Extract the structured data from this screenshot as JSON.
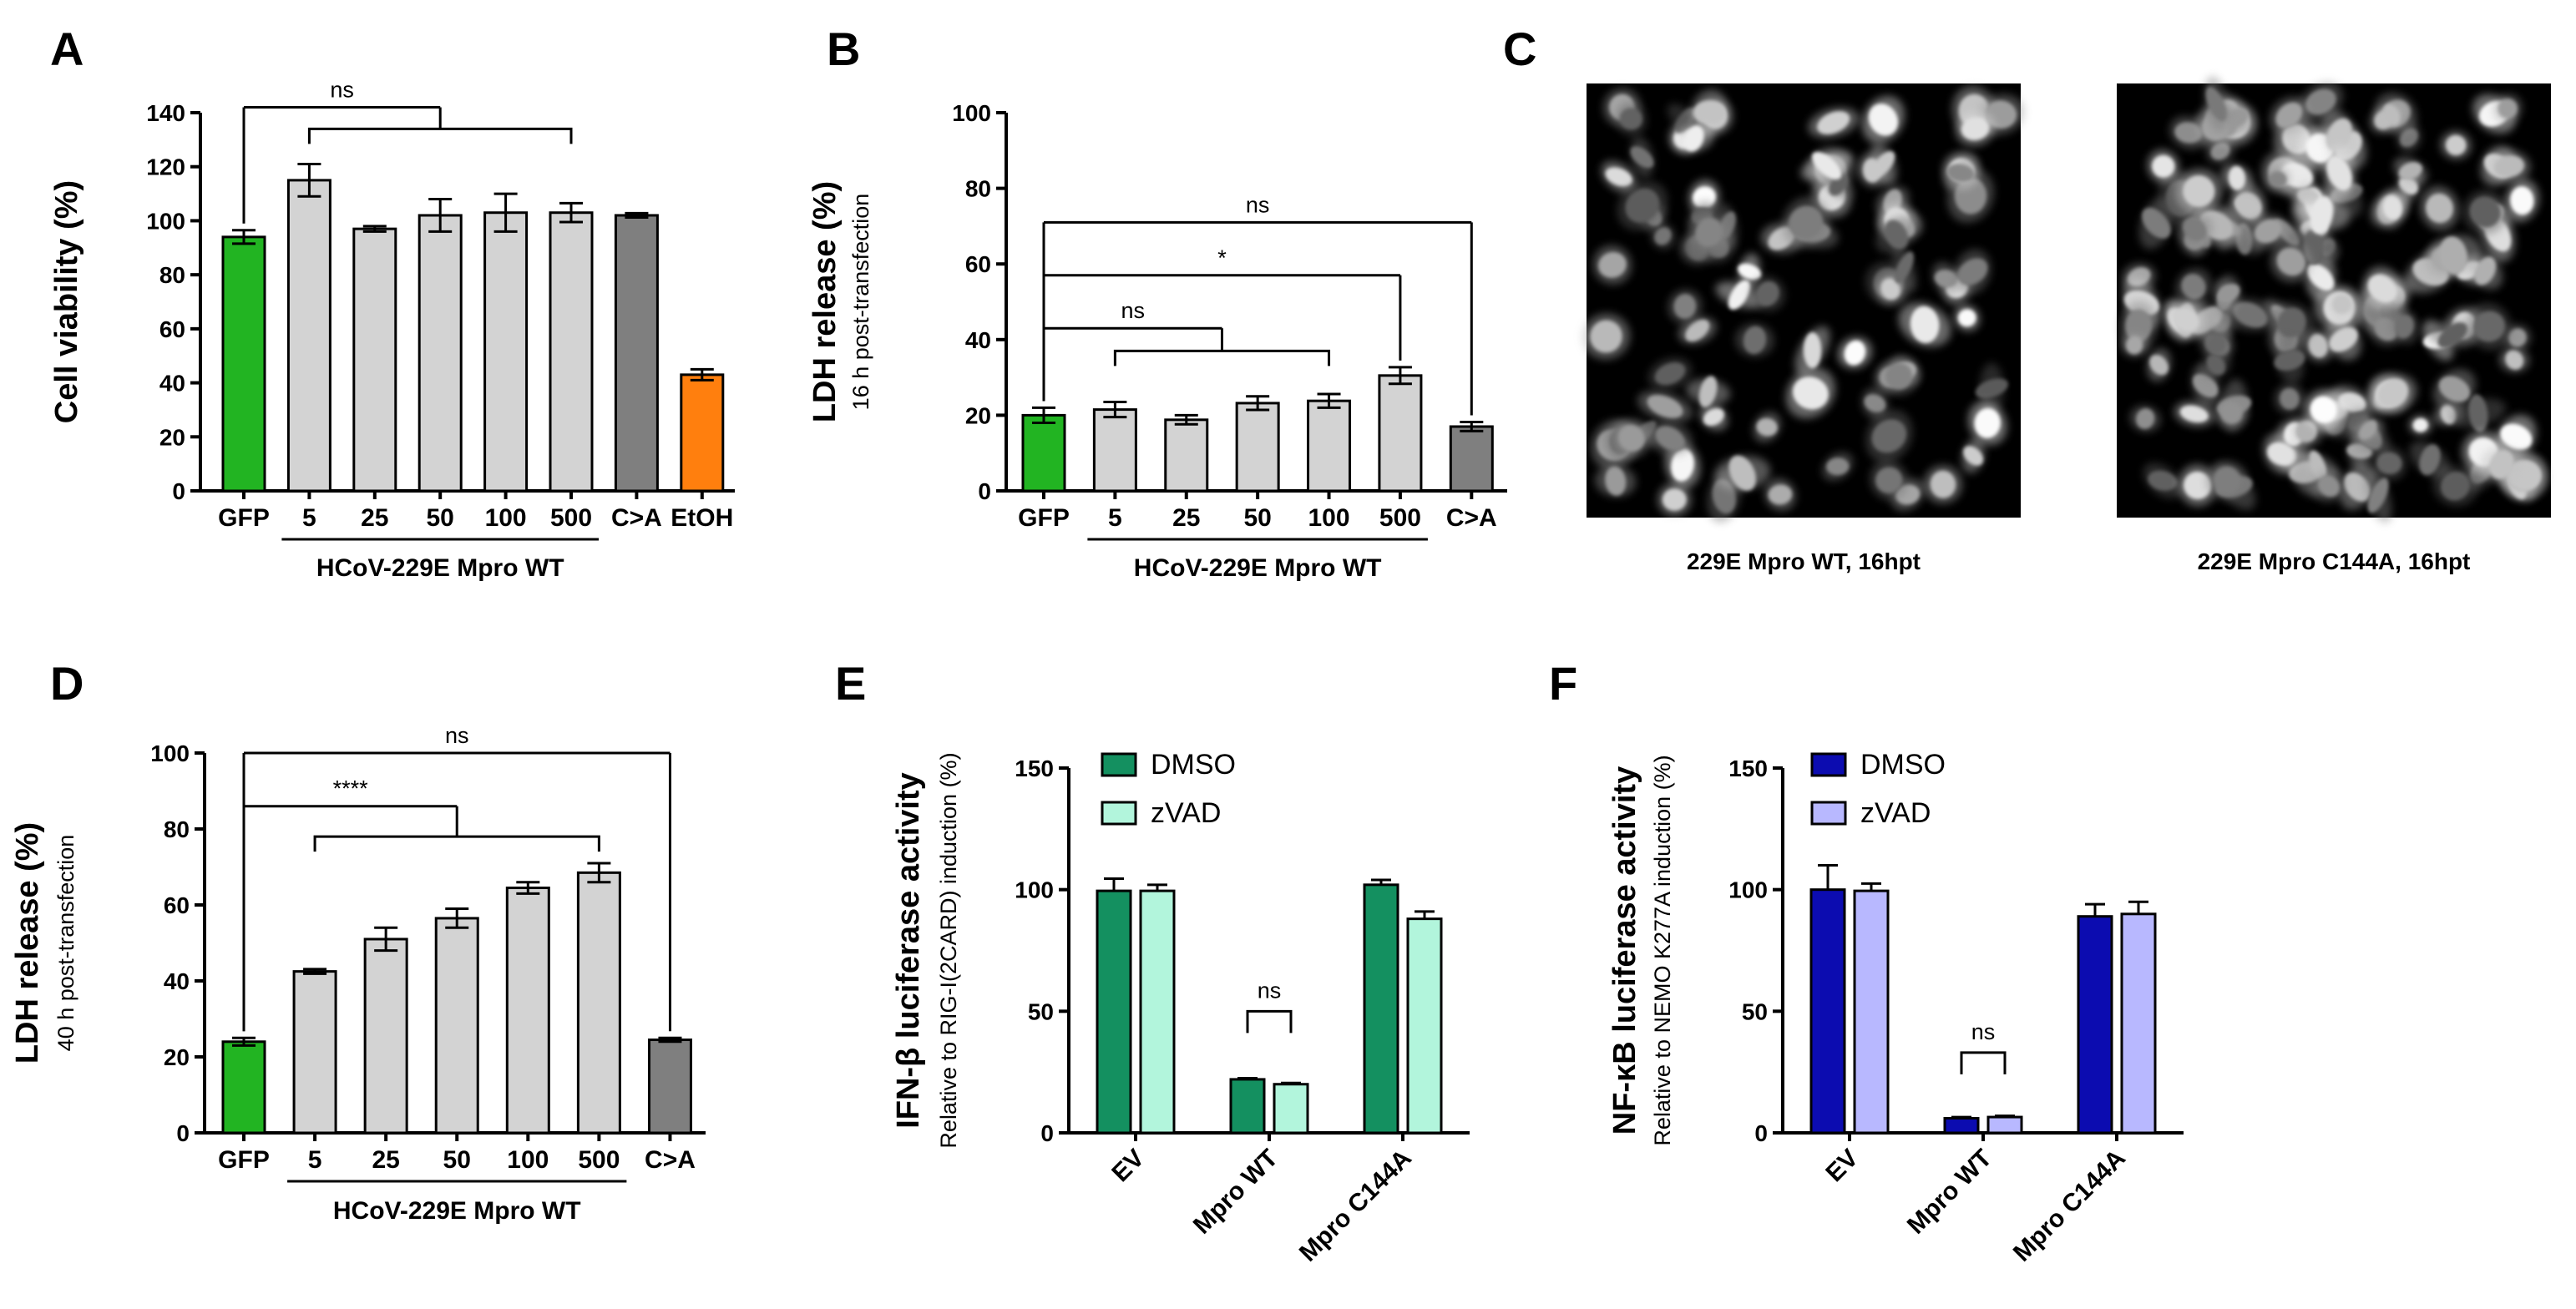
{
  "colors": {
    "gfp": "#22b422",
    "light_grey": "#d3d3d3",
    "dark_grey": "#7f7f7f",
    "etoh": "#ff7f0e",
    "dmso_green": "#149060",
    "zvad_green": "#b2f5dc",
    "dmso_blue": "#0c0cb0",
    "zvad_blue": "#b8b8ff",
    "microscopy_bg": "#000000"
  },
  "chart_data": [
    {
      "id": "A",
      "panel_label": "A",
      "type": "bar",
      "ylabel": "Cell viability (%)",
      "ylabel_sub": "",
      "ylim": [
        0,
        140
      ],
      "yticks": [
        "0",
        "20",
        "40",
        "60",
        "80",
        "100",
        "120",
        "140"
      ],
      "categories": [
        "GFP",
        "5",
        "25",
        "50",
        "100",
        "500",
        "C>A",
        "EtOH"
      ],
      "values": [
        94,
        115,
        97,
        102,
        103,
        103,
        102,
        43
      ],
      "errors": [
        2.5,
        6,
        1,
        6,
        7,
        3.5,
        0.8,
        2
      ],
      "bar_colors": [
        "gfp",
        "light_grey",
        "light_grey",
        "light_grey",
        "light_grey",
        "light_grey",
        "dark_grey",
        "etoh"
      ],
      "group_label": "HCoV-229E  Mpro WT",
      "group_span": [
        1,
        5
      ],
      "significance": [
        {
          "label": "ns",
          "left": [
            0
          ],
          "right": [
            1,
            5
          ],
          "y": 142,
          "y2": 134
        }
      ]
    },
    {
      "id": "B",
      "panel_label": "B",
      "type": "bar",
      "ylabel": "LDH release (%)",
      "ylabel_sub": "16 h post-transfection",
      "ylim": [
        0,
        100
      ],
      "yticks": [
        "0",
        "20",
        "40",
        "60",
        "80",
        "100"
      ],
      "categories": [
        "GFP",
        "5",
        "25",
        "50",
        "100",
        "500",
        "C>A"
      ],
      "values": [
        20,
        21.5,
        18.8,
        23.2,
        23.8,
        30.5,
        17
      ],
      "errors": [
        2,
        2,
        1.2,
        1.8,
        1.8,
        2.2,
        1.2
      ],
      "bar_colors": [
        "gfp",
        "light_grey",
        "light_grey",
        "light_grey",
        "light_grey",
        "light_grey",
        "dark_grey"
      ],
      "group_label": "HCoV-229E  Mpro WT",
      "group_span": [
        1,
        5
      ],
      "significance": [
        {
          "label": "ns",
          "left": [
            0
          ],
          "right": [
            1,
            4
          ],
          "y": 43,
          "y2": 37
        },
        {
          "label": "*",
          "left": [
            0
          ],
          "right": [
            5
          ],
          "y": 57,
          "y2": 0
        },
        {
          "label": "ns",
          "left": [
            0
          ],
          "right": [
            6
          ],
          "y": 71,
          "y2": 0
        }
      ]
    },
    {
      "id": "D",
      "panel_label": "D",
      "type": "bar",
      "ylabel": "LDH release (%)",
      "ylabel_sub": "40 h post-transfection",
      "ylim": [
        0,
        100
      ],
      "yticks": [
        "0",
        "20",
        "40",
        "60",
        "80",
        "100"
      ],
      "categories": [
        "GFP",
        "5",
        "25",
        "50",
        "100",
        "500",
        "C>A"
      ],
      "values": [
        24,
        42.5,
        51,
        56.5,
        64.5,
        68.5,
        24.5
      ],
      "errors": [
        1,
        0.6,
        3,
        2.5,
        1.5,
        2.5,
        0.5
      ],
      "bar_colors": [
        "gfp",
        "light_grey",
        "light_grey",
        "light_grey",
        "light_grey",
        "light_grey",
        "dark_grey"
      ],
      "group_label": "HCoV-229E  Mpro WT",
      "group_span": [
        1,
        5
      ],
      "significance": [
        {
          "label": "****",
          "left": [
            0
          ],
          "right": [
            1,
            5
          ],
          "y": 86,
          "y2": 78
        },
        {
          "label": "ns",
          "left": [
            0
          ],
          "right": [
            6
          ],
          "y": 100,
          "y2": 0
        }
      ]
    },
    {
      "id": "E",
      "panel_label": "E",
      "type": "bar",
      "ylabel": "IFN-β luciferase activity",
      "ylabel_sub": "Relative to RIG-I(2CARD) induction (%)",
      "ylim": [
        0,
        150
      ],
      "yticks": [
        "0",
        "50",
        "100",
        "150"
      ],
      "categories": [
        "EV",
        "Mpro WT",
        "Mpro C144A"
      ],
      "series": [
        {
          "name": "DMSO",
          "values": [
            99.5,
            22,
            102
          ],
          "errors": [
            5,
            0.5,
            2
          ],
          "color": "dmso_green"
        },
        {
          "name": "zVAD",
          "values": [
            99.5,
            20,
            88
          ],
          "errors": [
            2.5,
            0.5,
            3
          ],
          "color": "zvad_green"
        }
      ],
      "significance": [
        {
          "label": "ns",
          "category": 1,
          "y": 50
        }
      ]
    },
    {
      "id": "F",
      "panel_label": "F",
      "type": "bar",
      "ylabel": "NF-κB luciferase activity",
      "ylabel_sub": "Relative to NEMO K277A induction (%)",
      "ylim": [
        0,
        150
      ],
      "yticks": [
        "0",
        "50",
        "100",
        "150"
      ],
      "categories": [
        "EV",
        "Mpro WT",
        "Mpro C144A"
      ],
      "series": [
        {
          "name": "DMSO",
          "values": [
            100,
            6,
            89
          ],
          "errors": [
            10,
            0.5,
            5
          ],
          "color": "dmso_blue"
        },
        {
          "name": "zVAD",
          "values": [
            99.5,
            6.5,
            90
          ],
          "errors": [
            3,
            0.5,
            5
          ],
          "color": "zvad_blue"
        }
      ],
      "significance": [
        {
          "label": "ns",
          "category": 1,
          "y": 33
        }
      ]
    }
  ],
  "microscopy": {
    "panel_label": "C",
    "images": [
      {
        "caption": "229E Mpro WT, 16hpt"
      },
      {
        "caption": "229E Mpro C144A, 16hpt"
      }
    ]
  }
}
